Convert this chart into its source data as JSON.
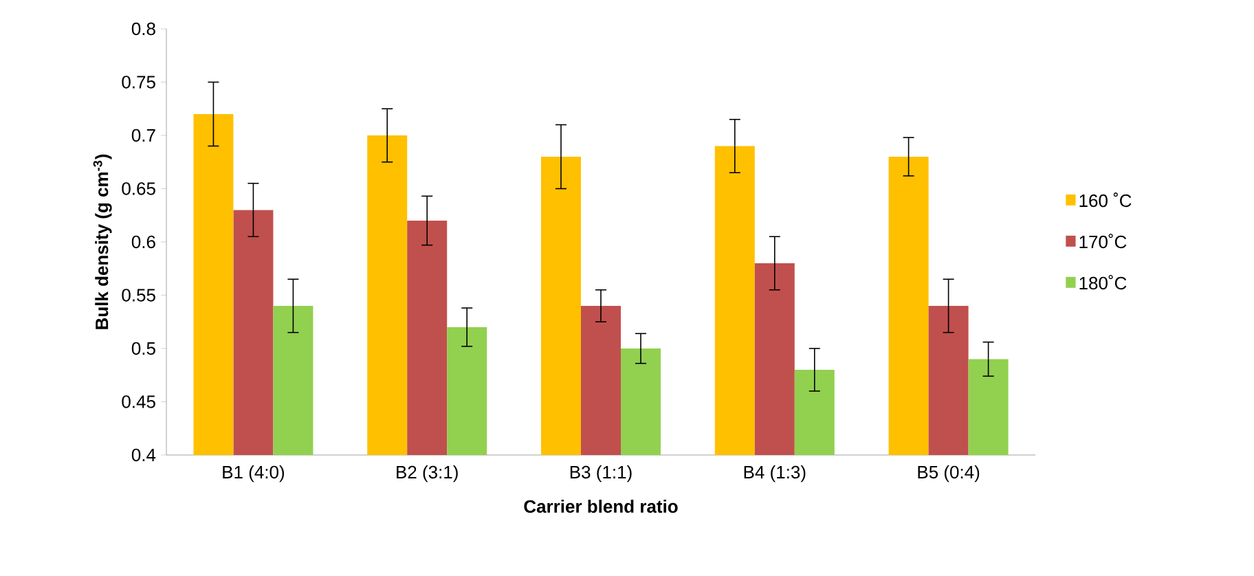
{
  "chart_data": {
    "type": "bar",
    "xlabel": "Carrier blend ratio",
    "ylabel": "Bulk density (g cm$^{-3}$)",
    "categories": [
      "B1 (4:0)",
      "B2 (3:1)",
      "B3 (1:1)",
      "B4 (1:3)",
      "B5 (0:4)"
    ],
    "series": [
      {
        "name": "160 ˚C",
        "color": "#ffc000",
        "values": [
          0.72,
          0.7,
          0.68,
          0.69,
          0.68
        ],
        "errors": [
          0.03,
          0.025,
          0.03,
          0.025,
          0.018
        ]
      },
      {
        "name": "170˚C",
        "color": "#c0504d",
        "values": [
          0.63,
          0.62,
          0.54,
          0.58,
          0.54
        ],
        "errors": [
          0.025,
          0.023,
          0.015,
          0.025,
          0.025
        ]
      },
      {
        "name": "180˚C",
        "color": "#92d050",
        "values": [
          0.54,
          0.52,
          0.5,
          0.48,
          0.49
        ],
        "errors": [
          0.025,
          0.018,
          0.014,
          0.02,
          0.016
        ]
      }
    ],
    "ylim": [
      0.4,
      0.8
    ],
    "yticks": [
      0.4,
      0.45,
      0.5,
      0.55,
      0.6,
      0.65,
      0.7,
      0.75,
      0.8
    ],
    "grid": false,
    "legend": "right"
  }
}
